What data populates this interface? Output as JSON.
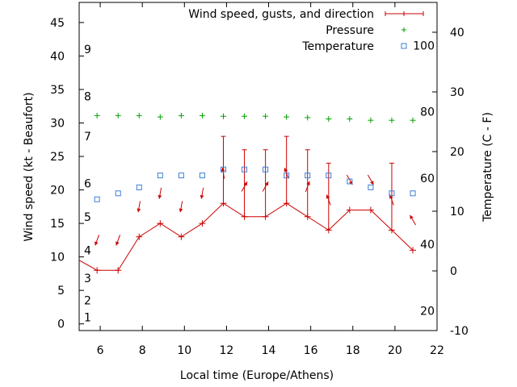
{
  "chart_data": {
    "type": "line",
    "xlabel": "Local time (Europe/Athens)",
    "ylabel": "Wind speed (kt - Beaufort)",
    "y2label": "Temperature (C - F)",
    "xlim": [
      5,
      22
    ],
    "xticks": [
      "6",
      "8",
      "10",
      "12",
      "14",
      "16",
      "18",
      "20",
      "22"
    ],
    "ylim": [
      -1,
      48
    ],
    "yticks": [
      "0",
      "5",
      "10",
      "15",
      "20",
      "25",
      "30",
      "35",
      "40",
      "45"
    ],
    "y2lim": [
      -10,
      45
    ],
    "y2ticks": [
      "-10",
      "0",
      "10",
      "20",
      "30",
      "40"
    ],
    "beaufort_labels": [
      "1",
      "2",
      "3",
      "4",
      "5",
      "6",
      "7",
      "8",
      "9"
    ],
    "fahrenheit_labels": [
      "20",
      "40",
      "60",
      "80",
      "100"
    ],
    "grid": false,
    "legend_position": "top-right",
    "series": [
      {
        "name": "Wind speed, gusts, and direction",
        "color": "#cc0000",
        "x": [
          5,
          5.85,
          6.85,
          7.85,
          8.85,
          9.85,
          10.85,
          11.85,
          12.85,
          13.85,
          14.85,
          15.85,
          16.85,
          17.85,
          18.85,
          19.85,
          20.85
        ],
        "y": [
          9.5,
          8,
          8,
          13,
          15,
          13,
          15,
          18,
          16,
          16,
          18,
          16,
          14,
          17,
          17,
          14,
          11
        ],
        "gusts": [
          null,
          null,
          null,
          null,
          null,
          null,
          null,
          28,
          26,
          26,
          28,
          26,
          24,
          null,
          null,
          24,
          null
        ],
        "direction_deg": [
          null,
          200,
          200,
          190,
          190,
          190,
          190,
          350,
          30,
          30,
          340,
          20,
          340,
          150,
          150,
          340,
          330
        ]
      },
      {
        "name": "Pressure",
        "color": "#00a000",
        "marker": "plus",
        "x": [
          5.85,
          6.85,
          7.85,
          8.85,
          9.85,
          10.85,
          11.85,
          12.85,
          13.85,
          14.85,
          15.85,
          16.85,
          17.85,
          18.85,
          19.85,
          20.85
        ],
        "y": [
          31.1,
          31.1,
          31.1,
          30.9,
          31.1,
          31.1,
          31.0,
          31.0,
          31.0,
          30.9,
          30.8,
          30.6,
          30.6,
          30.4,
          30.4,
          30.4
        ]
      },
      {
        "name": "Temperature",
        "color": "#3a7fd5",
        "marker": "square",
        "axis": "y2",
        "x": [
          5.85,
          6.85,
          7.85,
          8.85,
          9.85,
          10.85,
          11.85,
          12.85,
          13.85,
          14.85,
          15.85,
          16.85,
          17.85,
          18.85,
          19.85,
          20.85
        ],
        "y": [
          12,
          13,
          14,
          16,
          16,
          16,
          17,
          17,
          17,
          16,
          16,
          16,
          15,
          14,
          13,
          13
        ]
      }
    ]
  }
}
